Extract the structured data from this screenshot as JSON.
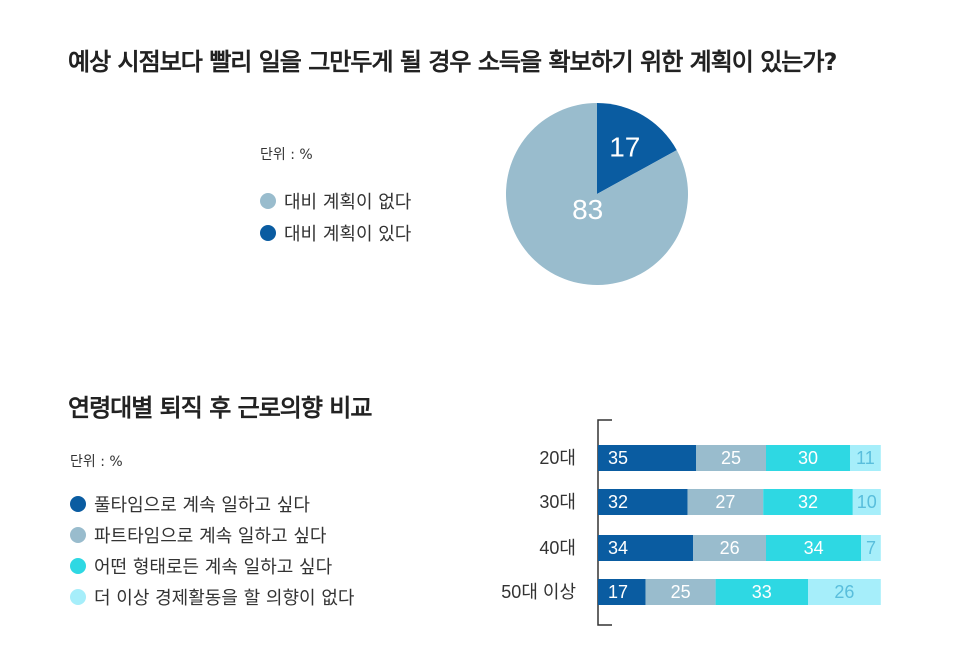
{
  "colors": {
    "dark_blue": "#0a5ca1",
    "grey_blue": "#99bccd",
    "cyan": "#2ed8e3",
    "light_cyan": "#a6eefa"
  },
  "chart_data": [
    {
      "type": "pie",
      "title": "예상 시점보다 빨리 일을 그만두게 될 경우 소득을 확보하기 위한 계획이 있는가?",
      "unit": "단위 : %",
      "legend": [
        {
          "label": "대비 계획이 없다",
          "color": "#99bccd"
        },
        {
          "label": "대비 계획이 있다",
          "color": "#0a5ca1"
        }
      ],
      "slices": [
        {
          "label": "대비 계획이 있다",
          "value": 17,
          "color": "#0a5ca1"
        },
        {
          "label": "대비 계획이 없다",
          "value": 83,
          "color": "#99bccd"
        }
      ]
    },
    {
      "type": "bar",
      "orientation": "horizontal",
      "stacked": true,
      "title": "연령대별 퇴직 후 근로의향 비교",
      "unit": "단위 : %",
      "categories": [
        "20대",
        "30대",
        "40대",
        "50대 이상"
      ],
      "series": [
        {
          "name": "풀타임으로 계속 일하고 싶다",
          "color": "#0a5ca1",
          "label_color": "#ffffff",
          "values": [
            35,
            32,
            34,
            17
          ]
        },
        {
          "name": "파트타임으로 계속 일하고 싶다",
          "color": "#99bccd",
          "label_color": "#ffffff",
          "values": [
            25,
            27,
            26,
            25
          ]
        },
        {
          "name": "어떤 형태로든 계속 일하고 싶다",
          "color": "#2ed8e3",
          "label_color": "#ffffff",
          "values": [
            30,
            32,
            34,
            33
          ]
        },
        {
          "name": "더 이상 경제활동을 할 의향이 없다",
          "color": "#a6eefa",
          "label_color": "#59bedc",
          "values": [
            11,
            10,
            7,
            26
          ]
        }
      ]
    }
  ]
}
